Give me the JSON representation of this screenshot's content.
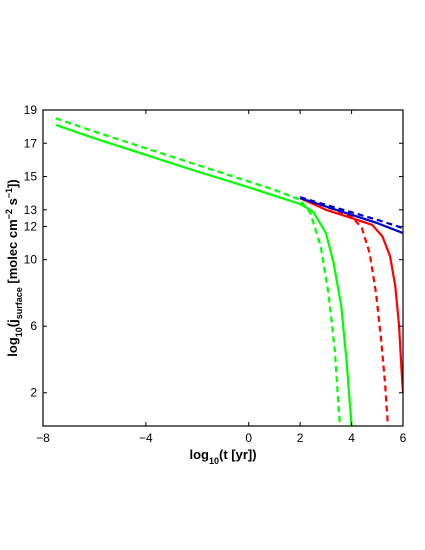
{
  "chart_data": {
    "type": "line",
    "title": "",
    "xlabel": {
      "prefix": "log",
      "sub": "10",
      "suffix": "(t [yr])"
    },
    "ylabel": {
      "prefix": "log",
      "sub1": "10",
      "mid": "(j",
      "sub2": "surface",
      "mid2": " [molec cm",
      "sup1": "−2",
      "mid3": " s",
      "sup2": "−1",
      "suffix": "])"
    },
    "xlim": [
      -8,
      6
    ],
    "ylim": [
      0,
      19
    ],
    "xticks": [
      -8,
      -4,
      0,
      2,
      4,
      6
    ],
    "xtick_labels": [
      "−8",
      "−4",
      "0",
      "2",
      "4",
      "6"
    ],
    "yticks": [
      2,
      6,
      10,
      12,
      13,
      15,
      17,
      19
    ],
    "ytick_labels": [
      "2",
      "6",
      "10",
      "12",
      "13",
      "15",
      "17",
      "19"
    ],
    "grid": false,
    "series": [
      {
        "color": "#00ff00",
        "dash": "solid",
        "points": [
          [
            -7.5,
            18.1
          ],
          [
            -6,
            17.3
          ],
          [
            -4,
            16.3
          ],
          [
            -2,
            15.3
          ],
          [
            0,
            14.35
          ],
          [
            1,
            13.85
          ],
          [
            2,
            13.35
          ],
          [
            2.5,
            12.9
          ],
          [
            3.0,
            11.6
          ],
          [
            3.3,
            9.8
          ],
          [
            3.6,
            7.2
          ],
          [
            3.8,
            4.0
          ],
          [
            3.95,
            1.0
          ],
          [
            4.0,
            0
          ]
        ]
      },
      {
        "color": "#00ff00",
        "dash": "dashed",
        "points": [
          [
            -7.5,
            18.5
          ],
          [
            -6,
            17.7
          ],
          [
            -4,
            16.7
          ],
          [
            -2,
            15.7
          ],
          [
            0,
            14.7
          ],
          [
            1,
            14.2
          ],
          [
            2.0,
            13.6
          ],
          [
            2.4,
            12.8
          ],
          [
            2.8,
            10.8
          ],
          [
            3.1,
            8.0
          ],
          [
            3.35,
            4.5
          ],
          [
            3.5,
            1.0
          ],
          [
            3.55,
            0
          ]
        ]
      },
      {
        "color": "#ff0000",
        "dash": "solid",
        "points": [
          [
            2.0,
            13.7
          ],
          [
            3.0,
            13.0
          ],
          [
            4.0,
            12.5
          ],
          [
            4.8,
            12.1
          ],
          [
            5.2,
            11.4
          ],
          [
            5.5,
            10.2
          ],
          [
            5.7,
            8.4
          ],
          [
            5.85,
            6.0
          ],
          [
            5.95,
            3.2
          ],
          [
            6.0,
            2.0
          ]
        ]
      },
      {
        "color": "#ff0000",
        "dash": "dashed",
        "points": [
          [
            2.0,
            13.75
          ],
          [
            3.0,
            13.2
          ],
          [
            4.0,
            12.6
          ],
          [
            4.4,
            11.9
          ],
          [
            4.7,
            10.4
          ],
          [
            4.95,
            8.0
          ],
          [
            5.15,
            5.2
          ],
          [
            5.3,
            2.6
          ],
          [
            5.4,
            0.3
          ],
          [
            5.42,
            0
          ]
        ]
      },
      {
        "color": "#0000cc",
        "dash": "solid",
        "points": [
          [
            2.0,
            13.7
          ],
          [
            3.0,
            13.2
          ],
          [
            4.0,
            12.7
          ],
          [
            5.0,
            12.2
          ],
          [
            6.0,
            11.6
          ]
        ]
      },
      {
        "color": "#0000cc",
        "dash": "dashed",
        "points": [
          [
            2.0,
            13.75
          ],
          [
            3.0,
            13.3
          ],
          [
            4.0,
            12.85
          ],
          [
            5.0,
            12.4
          ],
          [
            6.0,
            11.9
          ]
        ]
      }
    ]
  }
}
